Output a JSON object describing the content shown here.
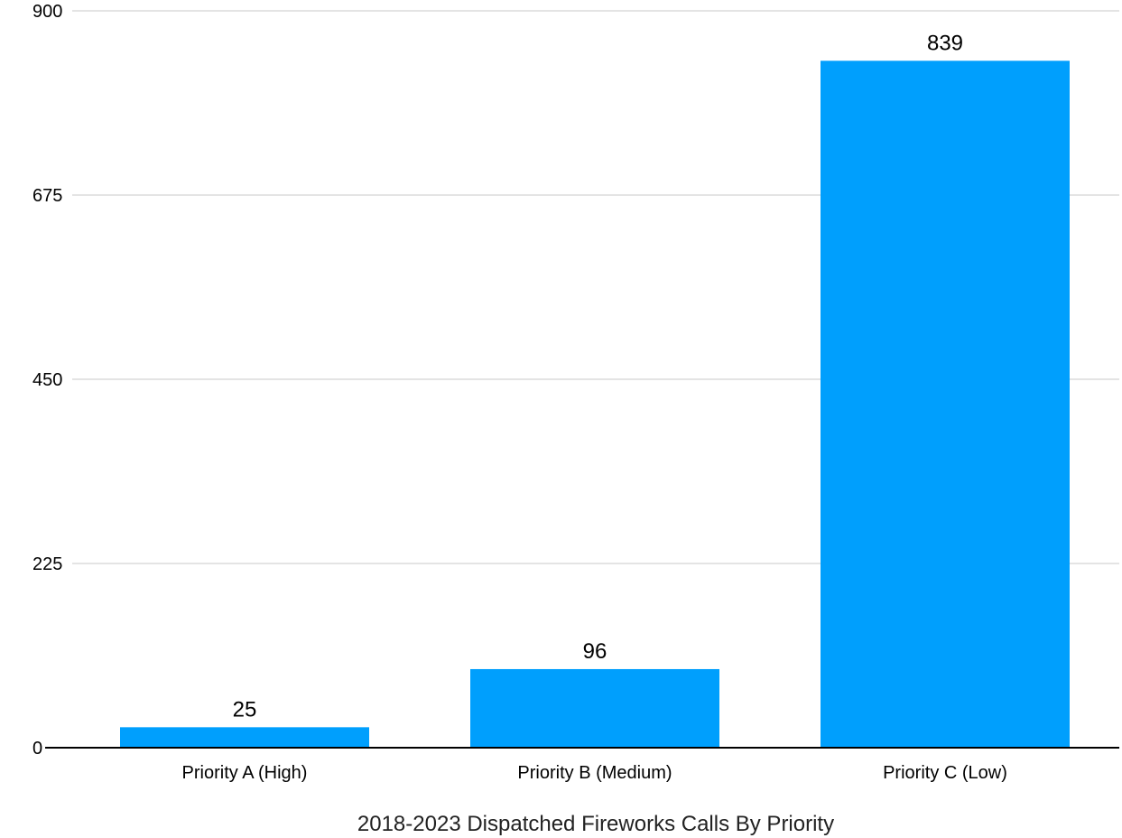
{
  "chart_data": {
    "type": "bar",
    "title": "2018-2023 Dispatched Fireworks Calls By Priority",
    "xlabel": "",
    "ylabel": "",
    "categories": [
      "Priority A (High)",
      "Priority B (Medium)",
      "Priority C (Low)"
    ],
    "values": [
      25,
      96,
      839
    ],
    "data_labels": [
      "25",
      "96",
      "839"
    ],
    "ylim": [
      0,
      900
    ],
    "yticks": [
      0,
      225,
      450,
      675,
      900
    ],
    "ytick_labels": [
      "0",
      "225",
      "450",
      "675",
      "900"
    ],
    "grid": true,
    "legend": "none",
    "colors": {
      "bar": "#009ffd"
    }
  }
}
